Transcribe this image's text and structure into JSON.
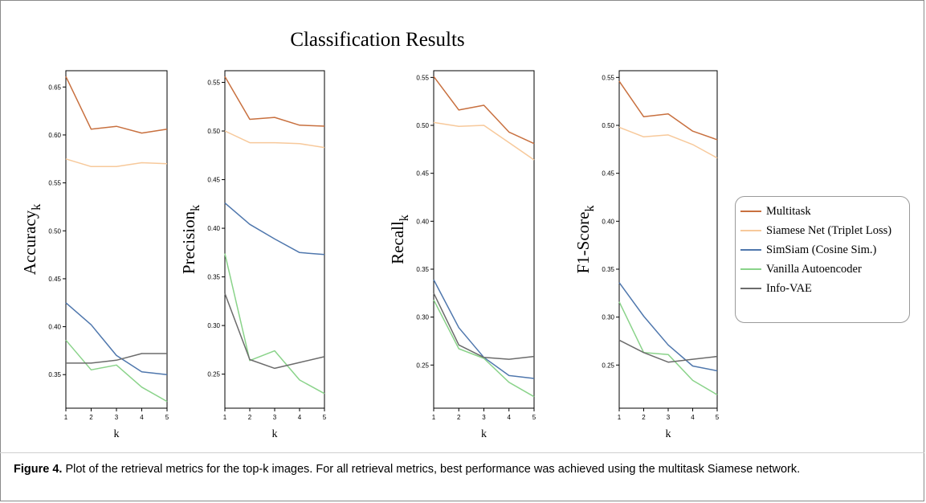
{
  "figure": {
    "main_title": "Classification Results",
    "caption_label": "Figure 4.",
    "caption_text": " Plot of the retrieval metrics for the top-k images. For all retrieval metrics, best performance was achieved using the multitask Siamese network."
  },
  "legend": {
    "items": [
      {
        "label": "Multitask",
        "color": "#c8703f"
      },
      {
        "label": "Siamese Net (Triplet Loss)",
        "color": "#f7c99b"
      },
      {
        "label": "SimSiam (Cosine Sim.)",
        "color": "#4f77ad"
      },
      {
        "label": "Vanilla Autoencoder",
        "color": "#8ad38a"
      },
      {
        "label": "Info-VAE",
        "color": "#6b6b6b"
      }
    ]
  },
  "chart_data": [
    {
      "type": "line",
      "xlabel": "k",
      "ylabel": "Accuracy",
      "ylabel_sub": "k",
      "x": [
        1,
        2,
        3,
        4,
        5
      ],
      "ylim": [
        0.315,
        0.667
      ],
      "yticks": [
        "0.35",
        "0.40",
        "0.45",
        "0.50",
        "0.55",
        "0.60",
        "0.65"
      ],
      "series": [
        {
          "name": "Multitask",
          "values": [
            0.661,
            0.606,
            0.609,
            0.602,
            0.606
          ]
        },
        {
          "name": "Siamese Net (Triplet Loss)",
          "values": [
            0.575,
            0.567,
            0.567,
            0.571,
            0.57
          ]
        },
        {
          "name": "SimSiam (Cosine Sim.)",
          "values": [
            0.425,
            0.402,
            0.37,
            0.353,
            0.35
          ]
        },
        {
          "name": "Vanilla Autoencoder",
          "values": [
            0.386,
            0.355,
            0.36,
            0.337,
            0.322
          ]
        },
        {
          "name": "Info-VAE",
          "values": [
            0.362,
            0.362,
            0.365,
            0.372,
            0.372
          ]
        }
      ]
    },
    {
      "type": "line",
      "xlabel": "k",
      "ylabel": "Precision",
      "ylabel_sub": "k",
      "x": [
        1,
        2,
        3,
        4,
        5
      ],
      "ylim": [
        0.215,
        0.562
      ],
      "yticks": [
        "0.25",
        "0.30",
        "0.35",
        "0.40",
        "0.45",
        "0.50",
        "0.55"
      ],
      "series": [
        {
          "name": "Multitask",
          "values": [
            0.556,
            0.512,
            0.514,
            0.506,
            0.505
          ]
        },
        {
          "name": "Siamese Net (Triplet Loss)",
          "values": [
            0.5,
            0.488,
            0.488,
            0.487,
            0.483
          ]
        },
        {
          "name": "SimSiam (Cosine Sim.)",
          "values": [
            0.426,
            0.404,
            0.389,
            0.375,
            0.373
          ]
        },
        {
          "name": "Vanilla Autoencoder",
          "values": [
            0.374,
            0.264,
            0.274,
            0.244,
            0.23
          ]
        },
        {
          "name": "Info-VAE",
          "values": [
            0.333,
            0.265,
            0.256,
            0.262,
            0.268
          ]
        }
      ]
    },
    {
      "type": "line",
      "xlabel": "k",
      "ylabel": "Recall",
      "ylabel_sub": "k",
      "x": [
        1,
        2,
        3,
        4,
        5
      ],
      "ylim": [
        0.205,
        0.557
      ],
      "yticks": [
        "0.25",
        "0.30",
        "0.35",
        "0.40",
        "0.45",
        "0.50",
        "0.55"
      ],
      "series": [
        {
          "name": "Multitask",
          "values": [
            0.551,
            0.516,
            0.521,
            0.493,
            0.481
          ]
        },
        {
          "name": "Siamese Net (Triplet Loss)",
          "values": [
            0.503,
            0.499,
            0.5,
            0.482,
            0.464
          ]
        },
        {
          "name": "SimSiam (Cosine Sim.)",
          "values": [
            0.339,
            0.289,
            0.258,
            0.239,
            0.236
          ]
        },
        {
          "name": "Vanilla Autoencoder",
          "values": [
            0.318,
            0.267,
            0.257,
            0.232,
            0.217
          ]
        },
        {
          "name": "Info-VAE",
          "values": [
            0.325,
            0.271,
            0.258,
            0.256,
            0.259
          ]
        }
      ]
    },
    {
      "type": "line",
      "xlabel": "k",
      "ylabel": "F1-Score",
      "ylabel_sub": "k",
      "x": [
        1,
        2,
        3,
        4,
        5
      ],
      "ylim": [
        0.205,
        0.557
      ],
      "yticks": [
        "0.25",
        "0.30",
        "0.35",
        "0.40",
        "0.45",
        "0.50",
        "0.55"
      ],
      "series": [
        {
          "name": "Multitask",
          "values": [
            0.546,
            0.509,
            0.512,
            0.494,
            0.485
          ]
        },
        {
          "name": "Siamese Net (Triplet Loss)",
          "values": [
            0.498,
            0.488,
            0.49,
            0.48,
            0.466
          ]
        },
        {
          "name": "SimSiam (Cosine Sim.)",
          "values": [
            0.336,
            0.301,
            0.271,
            0.249,
            0.244
          ]
        },
        {
          "name": "Vanilla Autoencoder",
          "values": [
            0.316,
            0.263,
            0.261,
            0.234,
            0.219
          ]
        },
        {
          "name": "Info-VAE",
          "values": [
            0.276,
            0.263,
            0.253,
            0.256,
            0.259
          ]
        }
      ]
    }
  ]
}
